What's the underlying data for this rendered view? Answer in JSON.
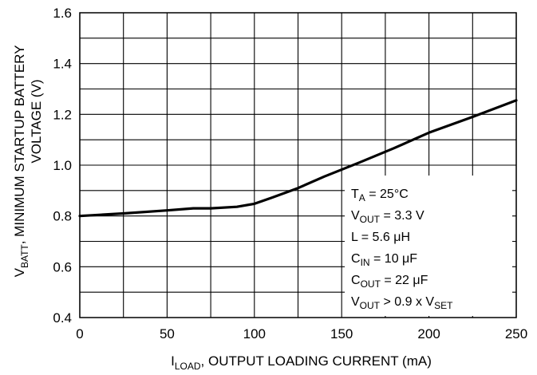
{
  "chart_data": {
    "type": "line",
    "xlabel": {
      "main": "I",
      "sub": "LOAD",
      "rest": ", OUTPUT LOADING CURRENT (mA)"
    },
    "ylabel": {
      "line1_main": "V",
      "line1_sub": "BATT",
      "line1_rest": ", MINIMUM STARTUP BATTERY",
      "line2": "VOLTAGE (V)"
    },
    "xlim": [
      0,
      250
    ],
    "ylim": [
      0.4,
      1.6
    ],
    "x_ticks": [
      "0",
      "50",
      "100",
      "150",
      "200",
      "250"
    ],
    "y_ticks": [
      "0.4",
      "0.6",
      "0.8",
      "1.0",
      "1.2",
      "1.4",
      "1.6"
    ],
    "x_grid": [
      0,
      25,
      50,
      75,
      100,
      125,
      150,
      175,
      200,
      225,
      250
    ],
    "y_grid": [
      0.4,
      0.5,
      0.6,
      0.7,
      0.8,
      0.9,
      1.0,
      1.1,
      1.2,
      1.3,
      1.4,
      1.5,
      1.6
    ],
    "grid": true,
    "series": [
      {
        "x": [
          0,
          25,
          50,
          65,
          75,
          90,
          100,
          110,
          125,
          140,
          160,
          180,
          200,
          225,
          250
        ],
        "y": [
          0.8,
          0.81,
          0.822,
          0.83,
          0.83,
          0.836,
          0.848,
          0.872,
          0.91,
          0.955,
          1.01,
          1.067,
          1.128,
          1.19,
          1.255
        ]
      }
    ],
    "annotation": [
      {
        "main": "T",
        "sub": "A",
        "rest": " = 25°C"
      },
      {
        "main": "V",
        "sub": "OUT",
        "rest": " = 3.3 V"
      },
      {
        "main": "L = 5.6 μH",
        "sub": "",
        "rest": ""
      },
      {
        "main": "C",
        "sub": "IN",
        "rest": " = 10 μF"
      },
      {
        "main": "C",
        "sub": "OUT",
        "rest": " = 22 μF"
      },
      {
        "main": "V",
        "sub": "OUT",
        "rest": " > 0.9 x V",
        "sub2": "SET"
      }
    ],
    "colors": {
      "line": "#000000",
      "grid": "#000000",
      "background": "#ffffff"
    }
  }
}
